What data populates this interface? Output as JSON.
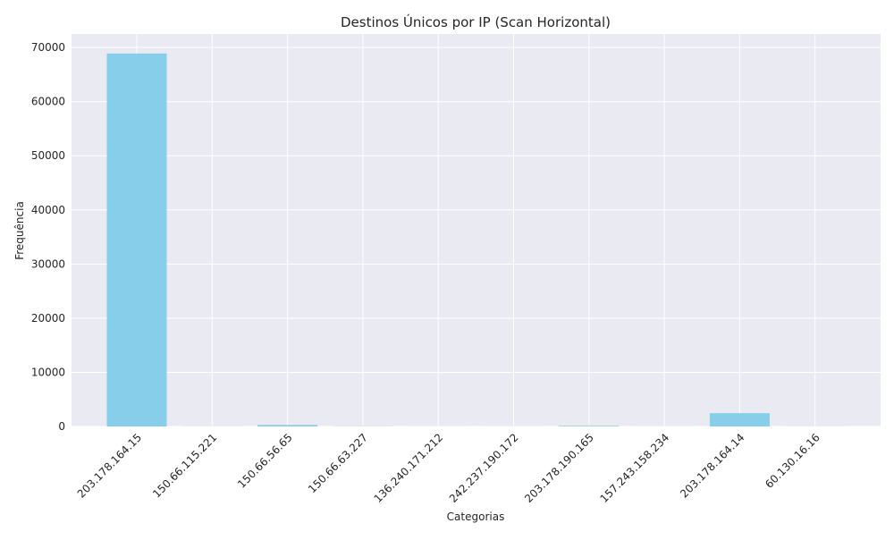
{
  "chart_data": {
    "type": "bar",
    "title": "Destinos Únicos por IP (Scan Horizontal)",
    "xlabel": "Categorias",
    "ylabel": "Frequência",
    "categories": [
      "203.178.164.15",
      "150.66.115.221",
      "150.66.56.65",
      "150.66.63.227",
      "136.240.171.212",
      "242.237.190.172",
      "203.178.190.165",
      "157.243.158.234",
      "203.178.164.14",
      "60.130.16.16"
    ],
    "values": [
      68900,
      20,
      280,
      30,
      10,
      10,
      120,
      10,
      2450,
      20
    ],
    "ylim": [
      0,
      72500
    ],
    "yticks": [
      0,
      10000,
      20000,
      30000,
      40000,
      50000,
      60000,
      70000
    ],
    "ytick_labels": [
      "0",
      "10000",
      "20000",
      "30000",
      "40000",
      "50000",
      "60000",
      "70000"
    ],
    "grid": true,
    "colors": {
      "bar": "#87ceeb",
      "plot_background": "#eaeaf2",
      "grid": "#ffffff"
    }
  }
}
